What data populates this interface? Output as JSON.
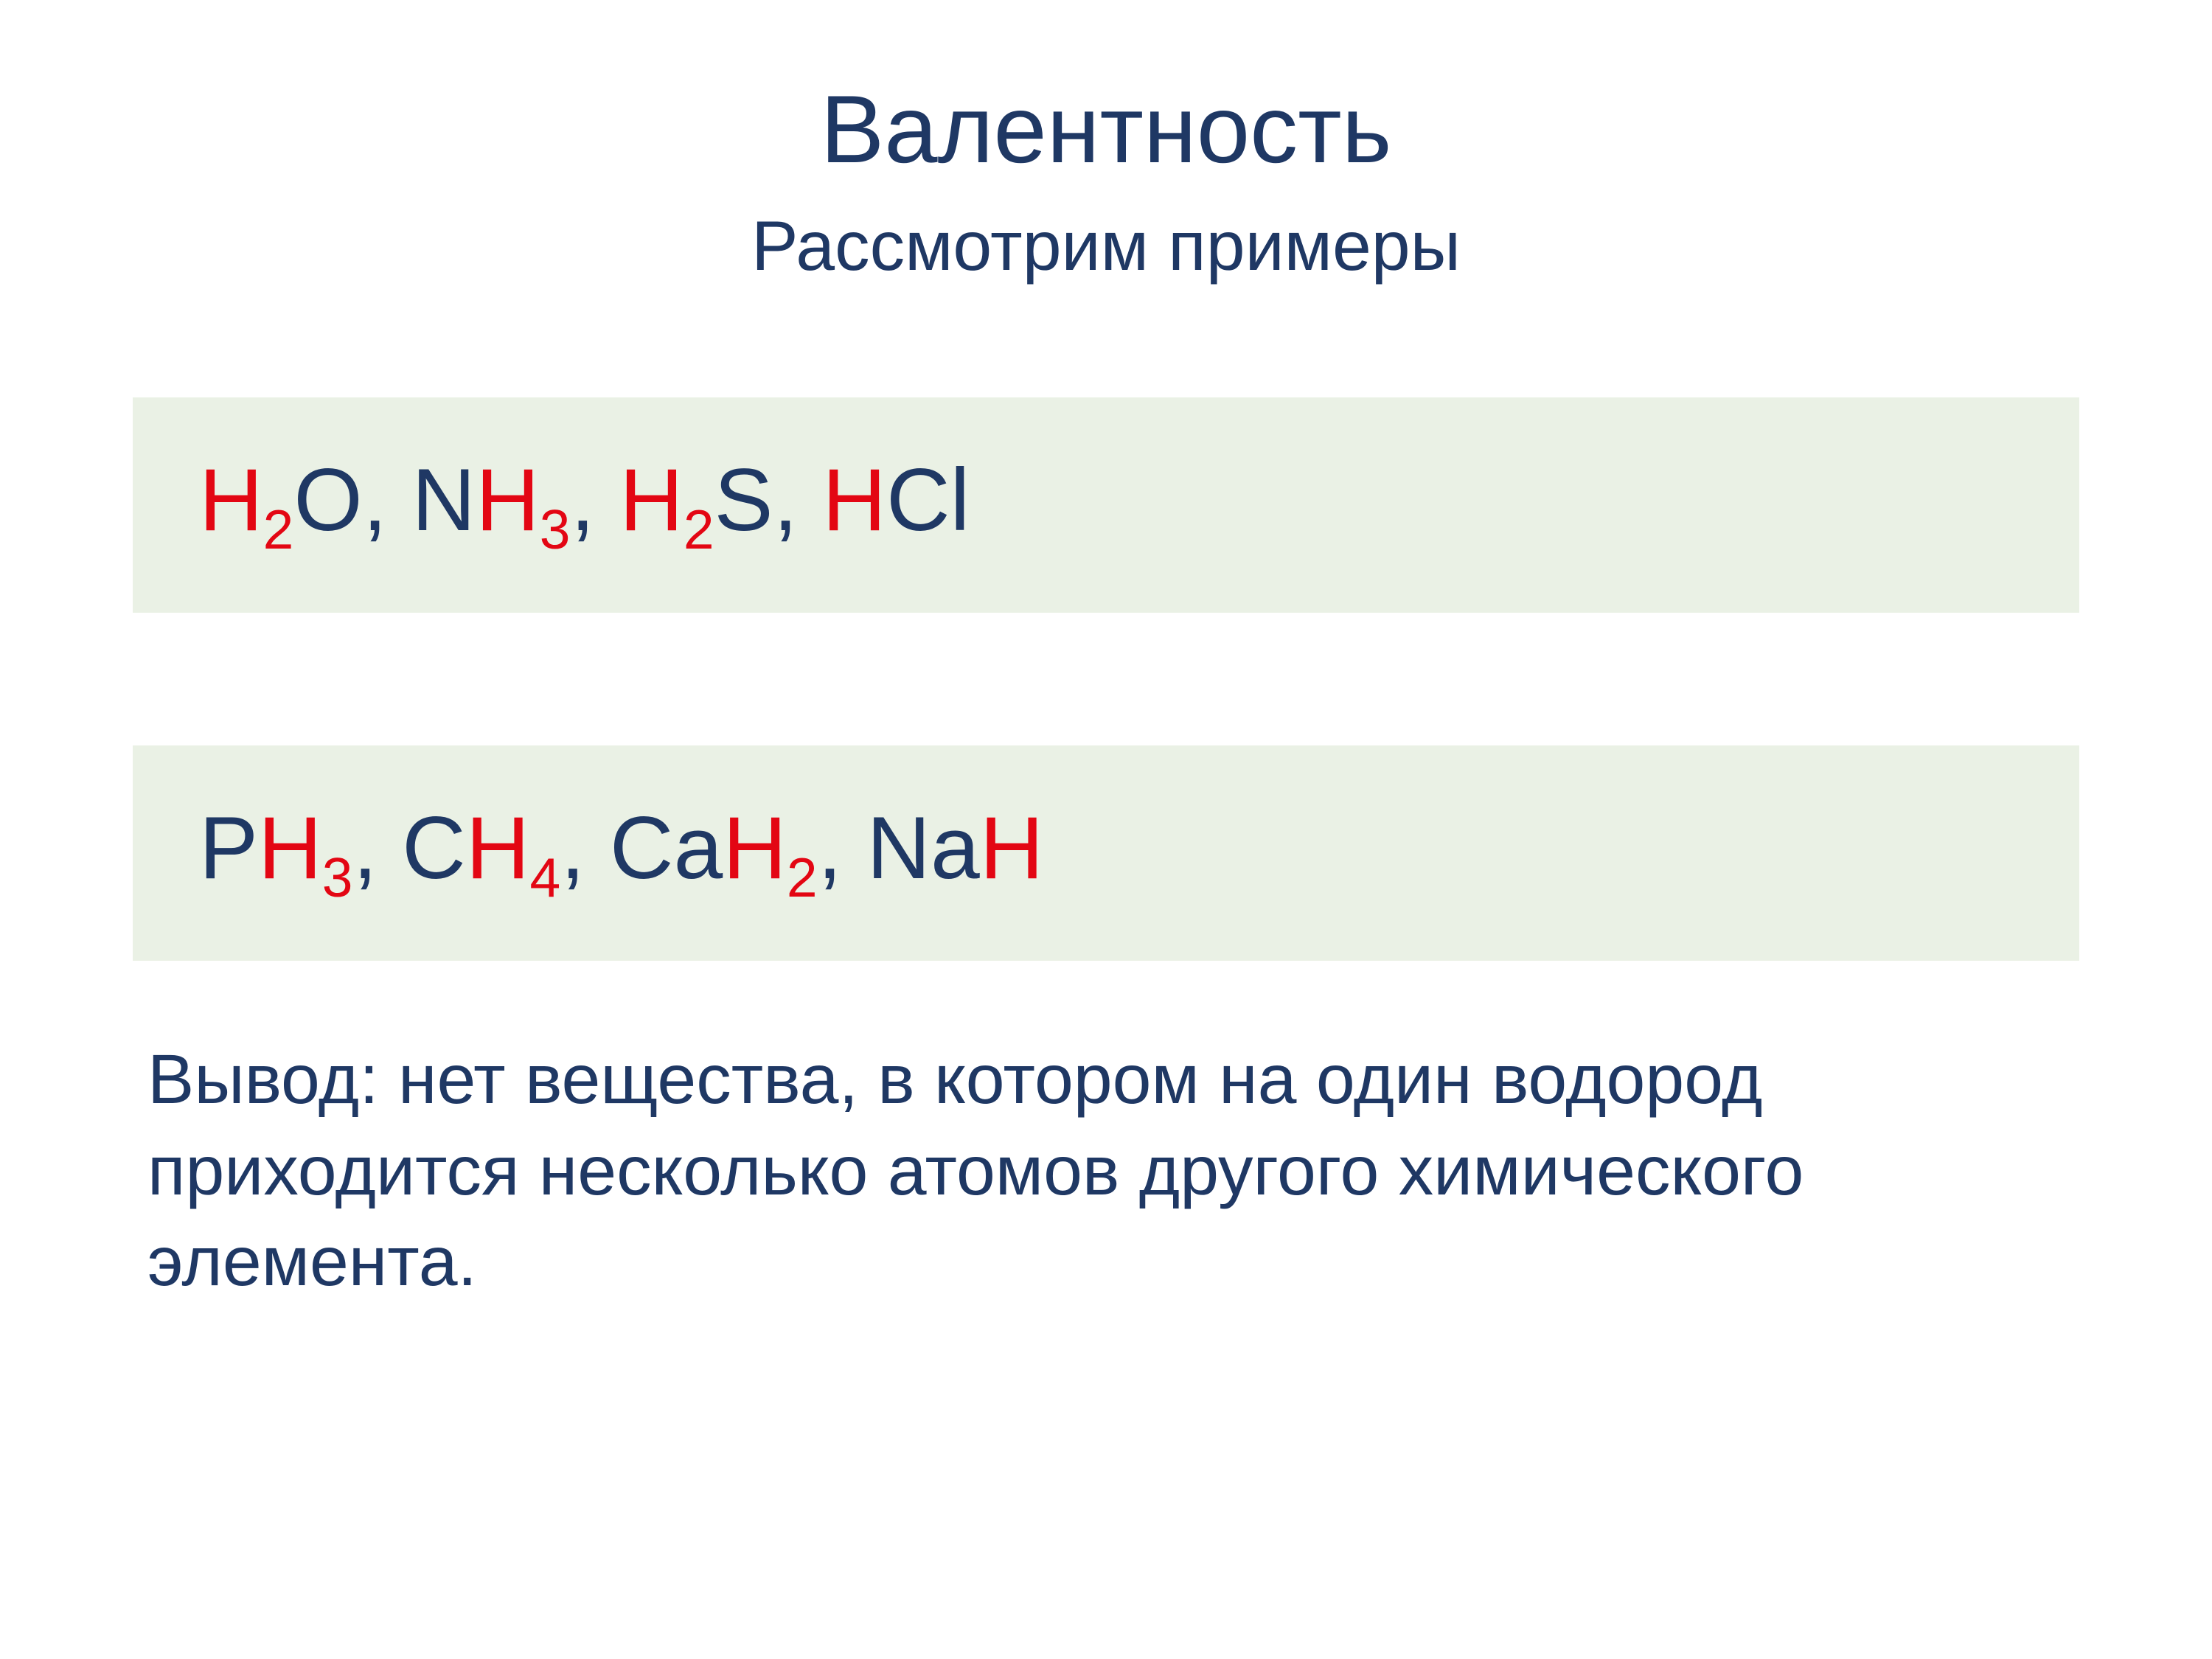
{
  "title": "Валентность",
  "subtitle": "Рассмотрим примеры",
  "colors": {
    "background": "#ffffff",
    "box_background": "#eaf1e5",
    "text_navy": "#1f3864",
    "text_red": "#e30613"
  },
  "typography": {
    "title_fontsize": 130,
    "subtitle_fontsize": 95,
    "formula_fontsize": 120,
    "subscript_fontsize": 75,
    "conclusion_fontsize": 95
  },
  "formula_row_1": {
    "parts": [
      {
        "text": "H",
        "color": "red"
      },
      {
        "text": "2",
        "color": "red",
        "sub": true
      },
      {
        "text": "O, N",
        "color": "navy"
      },
      {
        "text": "H",
        "color": "red"
      },
      {
        "text": "3",
        "color": "red",
        "sub": true
      },
      {
        "text": ", ",
        "color": "navy"
      },
      {
        "text": "H",
        "color": "red"
      },
      {
        "text": "2",
        "color": "red",
        "sub": true
      },
      {
        "text": "S, ",
        "color": "navy"
      },
      {
        "text": "H",
        "color": "red"
      },
      {
        "text": "Cl",
        "color": "navy"
      }
    ]
  },
  "formula_row_2": {
    "parts": [
      {
        "text": "P",
        "color": "navy"
      },
      {
        "text": "H",
        "color": "red"
      },
      {
        "text": "3",
        "color": "red",
        "sub": true
      },
      {
        "text": ", C",
        "color": "navy"
      },
      {
        "text": "H",
        "color": "red"
      },
      {
        "text": "4",
        "color": "red",
        "sub": true
      },
      {
        "text": ", Ca",
        "color": "navy"
      },
      {
        "text": "H",
        "color": "red"
      },
      {
        "text": "2",
        "color": "red",
        "sub": true
      },
      {
        "text": ", Na",
        "color": "navy"
      },
      {
        "text": "H",
        "color": "red"
      }
    ]
  },
  "conclusion": "Вывод: нет вещества, в котором на один водород приходится несколько атомов другого химического элемента."
}
